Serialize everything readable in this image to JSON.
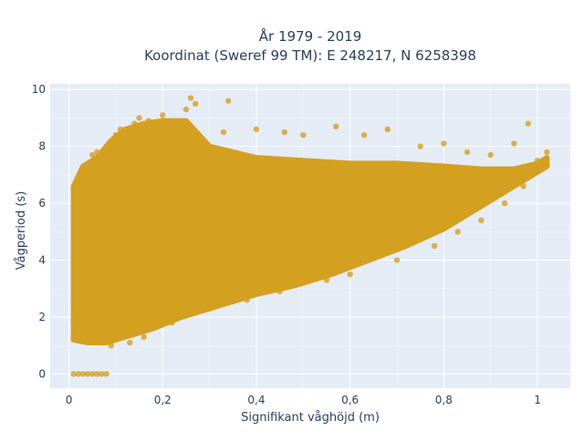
{
  "chart_data": {
    "type": "scatter",
    "title_line1": "År 1979 - 2019",
    "title_line2": "Koordinat (Sweref 99 TM): E 248217, N 6258398",
    "xlabel": "Signifikant våghöjd (m)",
    "ylabel": "Vågperiod (s)",
    "xlim": [
      -0.04,
      1.07
    ],
    "ylim": [
      -0.5,
      10.2
    ],
    "x_ticks": [
      0,
      0.2,
      0.4,
      0.6,
      0.8,
      1
    ],
    "x_tick_labels": [
      "0",
      "0,2",
      "0,4",
      "0,6",
      "0,8",
      "1"
    ],
    "y_ticks": [
      0,
      2,
      4,
      6,
      8,
      10
    ],
    "y_tick_labels": [
      "0",
      "2",
      "4",
      "6",
      "8",
      "10"
    ],
    "grid": true,
    "background_color": "#e5ecf6",
    "marker_color": "#d4a020",
    "series": [
      {
        "values_note": "",
        "points": [
          [
            0.01,
            0
          ],
          [
            0.02,
            0
          ],
          [
            0.03,
            0
          ],
          [
            0.04,
            0
          ],
          [
            0.05,
            0
          ],
          [
            0.06,
            0
          ],
          [
            0.07,
            0
          ],
          [
            0.08,
            0
          ],
          [
            0.01,
            1.3
          ],
          [
            0.01,
            1.9
          ],
          [
            0.02,
            4.6
          ],
          [
            0.02,
            4.4
          ],
          [
            0.03,
            6.5
          ],
          [
            0.03,
            1.2
          ],
          [
            0.04,
            7.4
          ],
          [
            0.05,
            7.7
          ],
          [
            0.06,
            7.8
          ],
          [
            0.07,
            1.1
          ],
          [
            0.08,
            8.0
          ],
          [
            0.09,
            1.0
          ],
          [
            0.1,
            8.4
          ],
          [
            0.11,
            8.6
          ],
          [
            0.12,
            8.5
          ],
          [
            0.13,
            1.1
          ],
          [
            0.14,
            8.8
          ],
          [
            0.15,
            9.0
          ],
          [
            0.16,
            1.3
          ],
          [
            0.17,
            8.9
          ],
          [
            0.2,
            9.1
          ],
          [
            0.22,
            1.8
          ],
          [
            0.25,
            9.3
          ],
          [
            0.26,
            9.7
          ],
          [
            0.27,
            9.5
          ],
          [
            0.3,
            2.3
          ],
          [
            0.33,
            8.5
          ],
          [
            0.34,
            9.6
          ],
          [
            0.38,
            2.6
          ],
          [
            0.4,
            8.6
          ],
          [
            0.45,
            2.9
          ],
          [
            0.46,
            8.5
          ],
          [
            0.5,
            8.4
          ],
          [
            0.55,
            3.3
          ],
          [
            0.57,
            8.7
          ],
          [
            0.6,
            3.5
          ],
          [
            0.63,
            8.4
          ],
          [
            0.68,
            8.6
          ],
          [
            0.7,
            4.0
          ],
          [
            0.75,
            8.0
          ],
          [
            0.78,
            4.5
          ],
          [
            0.8,
            8.1
          ],
          [
            0.83,
            5.0
          ],
          [
            0.85,
            7.8
          ],
          [
            0.88,
            5.4
          ],
          [
            0.9,
            7.7
          ],
          [
            0.93,
            6.0
          ],
          [
            0.95,
            8.1
          ],
          [
            0.97,
            6.6
          ],
          [
            0.99,
            7.2
          ],
          [
            1.0,
            7.5
          ],
          [
            1.02,
            7.8
          ],
          [
            1.01,
            7.4
          ],
          [
            0.98,
            8.8
          ]
        ]
      }
    ]
  }
}
